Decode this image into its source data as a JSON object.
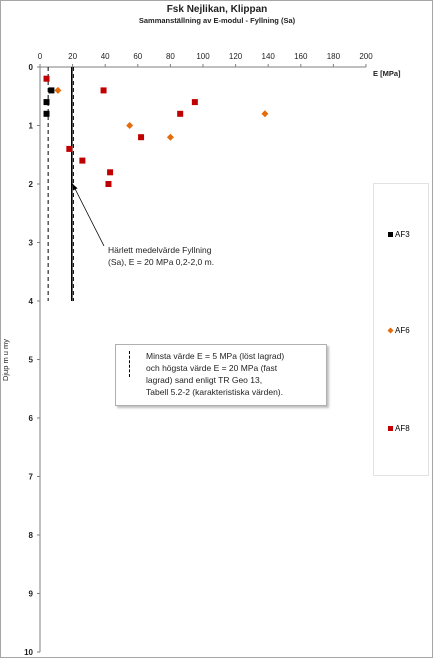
{
  "chart_data": {
    "type": "scatter",
    "title": "Fsk Nejlikan, Klippan",
    "subtitle": "Sammanställning  av E-modul - Fyllning  (Sa)",
    "xlabel": "E [MPa]",
    "ylabel": "Djup m u my",
    "xlim": [
      0,
      200
    ],
    "ylim": [
      10,
      0
    ],
    "x_ticks": [
      "0",
      "20",
      "40",
      "60",
      "80",
      "100",
      "120",
      "140",
      "160",
      "180",
      "200"
    ],
    "y_ticks": [
      "0",
      "1",
      "2",
      "3",
      "4",
      "5",
      "6",
      "7",
      "8",
      "9",
      "10"
    ],
    "grid": false,
    "legend_position": "right",
    "series": [
      {
        "name": "AF3",
        "marker": "square",
        "color": "#000000",
        "points": [
          [
            7,
            0.4
          ],
          [
            4,
            0.6
          ],
          [
            4,
            0.8
          ]
        ]
      },
      {
        "name": "AF6",
        "marker": "diamond",
        "color": "#e46c0a",
        "points": [
          [
            11,
            0.4
          ],
          [
            55,
            1.0
          ],
          [
            80,
            1.2
          ],
          [
            138,
            0.8
          ]
        ]
      },
      {
        "name": "AF8",
        "marker": "square",
        "color": "#c00000",
        "points": [
          [
            4,
            0.2
          ],
          [
            39,
            0.4
          ],
          [
            95,
            0.6
          ],
          [
            86,
            0.8
          ],
          [
            62,
            1.2
          ],
          [
            18,
            1.4
          ],
          [
            26,
            1.6
          ],
          [
            43,
            1.8
          ],
          [
            42,
            2.0
          ]
        ]
      }
    ],
    "reference_lines": [
      {
        "style": "solid",
        "x": 20,
        "y_range": [
          0,
          4
        ]
      },
      {
        "style": "dashed",
        "x": 20,
        "y_range": [
          0,
          4
        ]
      },
      {
        "style": "dashed",
        "x": 5,
        "y_range": [
          0,
          4
        ]
      }
    ],
    "annotations": [
      {
        "lines": [
          "Härlett medelvärde Fyllning",
          "(Sa),  E =  20 MPa 0,2-2,0 m."
        ],
        "arrow_to": [
          20,
          2.0
        ]
      }
    ],
    "note_box": [
      "Minsta värde E = 5 MPa (löst lagrad)",
      "och högsta värde E = 20 MPa (fast",
      "lagrad) sand enligt TR Geo 13,",
      "Tabell 5.2-2 (karakteristiska värden)."
    ]
  }
}
